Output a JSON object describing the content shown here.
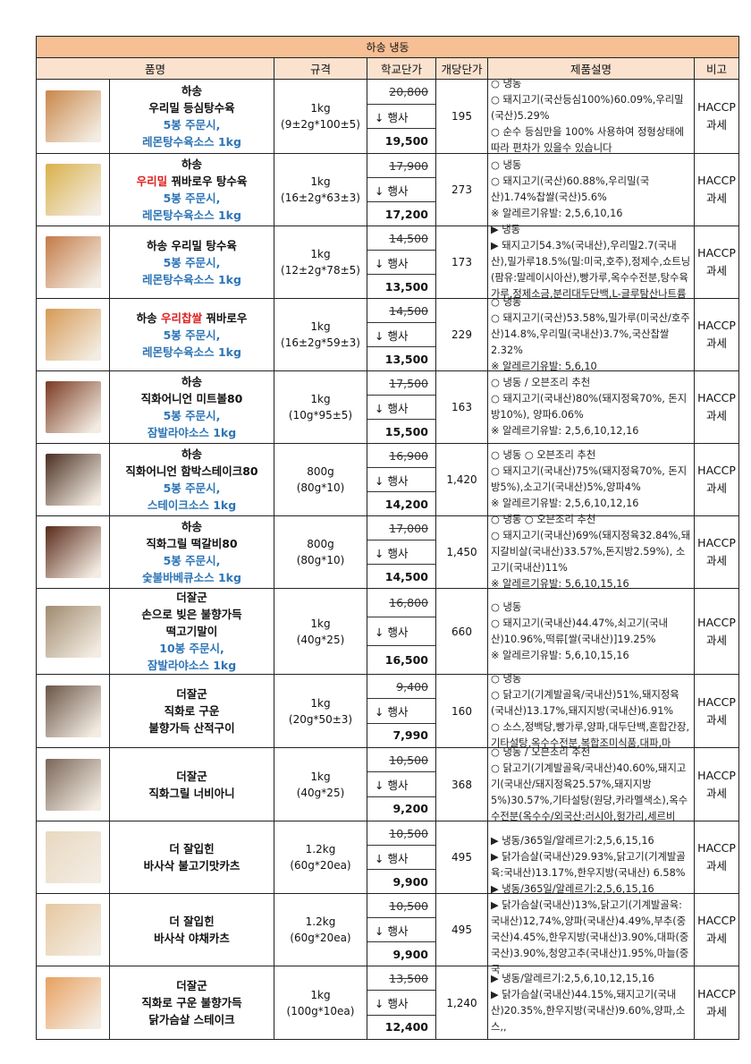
{
  "table_title": "하송 냉동",
  "headers": [
    "품명",
    "규격",
    "학교단가",
    "개당단가",
    "제품설명",
    "비고"
  ],
  "colors": {
    "title_bg": "#f6bf94",
    "header_bg": "#fbe2cf",
    "blue": "#2e75b6",
    "red": "#e02020"
  },
  "event_label": "↓ 행사",
  "rows": [
    {
      "photo": "#c9874a",
      "name": [
        [
          [
            "하송",
            "k"
          ]
        ],
        [
          [
            "우리밀 등심탕수육",
            "k"
          ]
        ],
        [
          [
            "5봉 주문시,",
            "b"
          ]
        ],
        [
          [
            "레몬탕수육소스 1kg",
            "b"
          ]
        ]
      ],
      "spec": [
        "1kg",
        "(9±2g*100±5)"
      ],
      "orig": "20,800",
      "sale": "19,500",
      "unit": "195",
      "desc": [
        "○ 냉동",
        "○ 돼지고기(국산등심100%)60.09%,우리밀(국산)5.29%",
        "○ 순수 등심만을 100% 사용하여 정형상태에 따라 편차가 있을수 있습니다"
      ],
      "remark": [
        "HACCP",
        "과세"
      ]
    },
    {
      "photo": "#d9b04a",
      "name": [
        [
          [
            "하송",
            "k"
          ]
        ],
        [
          [
            "우리밀",
            "r"
          ],
          [
            " 꿔바로우 탕수육",
            "k"
          ]
        ],
        [
          [
            "5봉 주문시,",
            "b"
          ]
        ],
        [
          [
            "레몬탕수육소스 1kg",
            "b"
          ]
        ]
      ],
      "spec": [
        "1kg",
        "(16±2g*63±3)"
      ],
      "orig": "17,900",
      "sale": "17,200",
      "unit": "273",
      "desc": [
        "○ 냉동",
        "○ 돼지고기(국산)60.88%,우리밀(국산)1.74%찹쌀(국산)5.6%",
        "※ 알레르기유발: 2,5,6,10,16"
      ],
      "remark": [
        "HACCP",
        "과세"
      ]
    },
    {
      "photo": "#c47a48",
      "name": [
        [
          [
            "하송 우리밀 탕수육",
            "k"
          ]
        ],
        [
          [
            "5봉 주문시,",
            "b"
          ]
        ],
        [
          [
            "레몬탕수육소스 1kg",
            "b"
          ]
        ]
      ],
      "spec": [
        "1kg",
        "(12±2g*78±5)"
      ],
      "orig": "14,500",
      "sale": "13,500",
      "unit": "173",
      "desc": [
        "▶ 냉동",
        "▶ 돼지고기54.3%(국내산),우리밀2.7(국내산),밀가루18.5%(밀:미국,호주),정제수,쇼트닝(팜유:말레이시아산),빵가루,옥수수전분,탕수육가루,정제소금,분리대두단백,L-글루탐산나트륨"
      ],
      "remark": [
        "HACCP",
        "과세"
      ]
    },
    {
      "photo": "#d69a55",
      "name": [
        [
          [
            "하송 ",
            "k"
          ],
          [
            "우리찹쌀",
            "r"
          ],
          [
            " 꿔바로우",
            "k"
          ]
        ],
        [
          [
            "5봉 주문시,",
            "b"
          ]
        ],
        [
          [
            "레몬탕수육소스 1kg",
            "b"
          ]
        ]
      ],
      "spec": [
        "1kg",
        "(16±2g*59±3)"
      ],
      "orig": "14,500",
      "sale": "13,500",
      "unit": "229",
      "desc": [
        "○ 냉동",
        "○ 돼지고기(국산)53.58%,밀가루(미국산/호주산)14.8%,우리밀(국내산)3.7%,국산찹쌀2.32%",
        "※ 알레르기유발: 5,6,10"
      ],
      "remark": [
        "HACCP",
        "과세"
      ]
    },
    {
      "photo": "#7a3a22",
      "name": [
        [
          [
            "하송",
            "k"
          ]
        ],
        [
          [
            "직화어니언 미트볼80",
            "k"
          ]
        ],
        [
          [
            "5봉 주문시,",
            "b"
          ]
        ],
        [
          [
            "잠발라야소스 1kg",
            "b"
          ]
        ]
      ],
      "spec": [
        "1kg",
        "(10g*95±5)"
      ],
      "orig": "17,500",
      "sale": "15,500",
      "unit": "163",
      "desc": [
        "○ 냉동 / 오븐조리 추천",
        "○ 돼지고기(국내산)80%(돼지정육70%, 돈지방10%), 양파6.06%",
        "※ 알레르기유발: 2,5,6,10,12,16"
      ],
      "remark": [
        "HACCP",
        "과세"
      ]
    },
    {
      "photo": "#4a2e22",
      "name": [
        [
          [
            "하송",
            "k"
          ]
        ],
        [
          [
            "직화어니언 함박스테이크80",
            "k"
          ]
        ],
        [
          [
            "5봉 주문시,",
            "b"
          ]
        ],
        [
          [
            "스테이크소스 1kg",
            "b"
          ]
        ]
      ],
      "spec": [
        "800g",
        "(80g*10)"
      ],
      "orig": "16,900",
      "sale": "14,200",
      "unit": "1,420",
      "desc": [
        "○ 냉동 ○ 오븐조리 추천",
        "○ 돼지고기(국내산)75%(돼지정육70%, 돈지방5%),소고기(국내산)5%,양파4%",
        "※ 알레르기유발: 2,5,6,10,12,16"
      ],
      "remark": [
        "HACCP",
        "과세"
      ]
    },
    {
      "photo": "#5a2a1a",
      "name": [
        [
          [
            "하송",
            "k"
          ]
        ],
        [
          [
            "직화그릴 떡갈비80",
            "k"
          ]
        ],
        [
          [
            "5봉 주문시,",
            "b"
          ]
        ],
        [
          [
            "숯불바베큐소스 1kg",
            "b"
          ]
        ]
      ],
      "spec": [
        "800g",
        "(80g*10)"
      ],
      "orig": "17,000",
      "sale": "14,500",
      "unit": "1,450",
      "desc": [
        "○ 냉동 ○ 오븐조리 추천",
        "○ 돼지고기(국내산)69%(돼지정육32.84%,돼지갈비살(국내산)33.57%,돈지방2.59%), 소고기(국내산)11%",
        "※ 알레르기유발: 5,6,10,15,16"
      ],
      "remark": [
        "HACCP",
        "과세"
      ]
    },
    {
      "photo": "#a08a70",
      "name": [
        [
          [
            "더잘군",
            "k"
          ]
        ],
        [
          [
            "손으로 빚은 불향가득",
            "k"
          ]
        ],
        [
          [
            "떡고기말이",
            "k"
          ]
        ],
        [
          [
            "10봉 주문시,",
            "b"
          ]
        ],
        [
          [
            "잠발라야소스 1kg",
            "b"
          ]
        ]
      ],
      "spec": [
        "1kg",
        "(40g*25)"
      ],
      "orig": "16,800",
      "sale": "16,500",
      "unit": "660",
      "desc": [
        "○ 냉동",
        "○ 돼지고기(국내산)44.47%,쇠고기(국내산)10.96%,떡류[쌀(국내산)]19.25%",
        "※ 알레르기유발: 5,6,10,15,16"
      ],
      "remark": [
        "HACCP",
        "과세"
      ]
    },
    {
      "photo": "#6a5548",
      "name": [
        [
          [
            "더잘군",
            "k"
          ]
        ],
        [
          [
            "직화로 구운",
            "k"
          ]
        ],
        [
          [
            "불향가득 산적구이",
            "k"
          ]
        ]
      ],
      "spec": [
        "1kg",
        "(20g*50±3)"
      ],
      "orig": "9,400",
      "sale": "7,990",
      "unit": "160",
      "desc": [
        "○ 냉동",
        "○ 닭고기(기계발골육/국내산)51%,돼지정육(국내산)13.17%,돼지지방(국내산)6.91%",
        "○ 소스,정백당,빵가루,양파,대두단백,혼합간장,기타설탕,옥수수전분,복합조미식품,대파,마"
      ],
      "remark": [
        "HACCP",
        "과세"
      ]
    },
    {
      "photo": "#7a6658",
      "name": [
        [
          [
            "더잘군",
            "k"
          ]
        ],
        [
          [
            "직화그릴 너비아니",
            "k"
          ]
        ]
      ],
      "spec": [
        "1kg",
        "(40g*25)"
      ],
      "orig": "10,500",
      "sale": "9,200",
      "unit": "368",
      "desc": [
        "○ 냉동 / 오븐조리 추천",
        "○ 닭고기(기계발골육/국내산)40.60%,돼지고기(국내산/돼지정육25.57%,돼지지방5%)30.57%,기타설탕(원당,카라멜색소),옥수수전분(옥수수/외국산:러시아,헝가리,세르비"
      ],
      "remark": [
        "HACCP",
        "과세"
      ]
    },
    {
      "photo": "#e8d8c0",
      "name": [
        [
          [
            "더 잘입힌",
            "k"
          ]
        ],
        [
          [
            "바사삭 불고기맛카츠",
            "k"
          ]
        ]
      ],
      "spec": [
        "1.2kg",
        "(60g*20ea)"
      ],
      "orig": "10,500",
      "sale": "9,900",
      "unit": "495",
      "desc": [
        "▶ 냉동/365일/알레르기:2,5,6,15,16",
        "▶ 닭가슴살(국내산)29.93%,닭고기(기계발골육:국내산)13.17%,한우지방(국내산) 6.58%"
      ],
      "remark": [
        "HACCP",
        "과세"
      ]
    },
    {
      "photo": "#e6c8a0",
      "name": [
        [
          [
            "더 잘입힌",
            "k"
          ]
        ],
        [
          [
            "바사삭 야채카츠",
            "k"
          ]
        ]
      ],
      "spec": [
        "1.2kg",
        "(60g*20ea)"
      ],
      "orig": "10,500",
      "sale": "9,900",
      "unit": "495",
      "desc": [
        "▶ 냉동/365일/알레르기:2,5,6,15,16",
        "▶ 닭가슴살(국내산)13%,닭고기(기계발골육:국내산)12,74%,양파(국내산)4.49%,부추(중국산)4.45%,한우지방(국내산)3.90%,대파(중국산)3.90%,청양고추(국내산)1.95%,마늘(중국"
      ],
      "remark": [
        "HACCP",
        "과세"
      ]
    },
    {
      "photo": "#e8a060",
      "name": [
        [
          [
            "더잘군",
            "k"
          ]
        ],
        [
          [
            "직화로 구운 불향가득",
            "k"
          ]
        ],
        [
          [
            "닭가슴살 스테이크",
            "k"
          ]
        ]
      ],
      "spec": [
        "1kg",
        "(100g*10ea)"
      ],
      "orig": "13,500",
      "sale": "12,400",
      "unit": "1,240",
      "desc": [
        "▶ 냉동/알레르기:2,5,6,10,12,15,16",
        "▶ 닭가슴살(국내산)44.15%,돼지고기(국내산)20.35%,한우지방(국내산)9.60%,양파,소스,,"
      ],
      "remark": [
        "HACCP",
        "과세"
      ]
    }
  ]
}
